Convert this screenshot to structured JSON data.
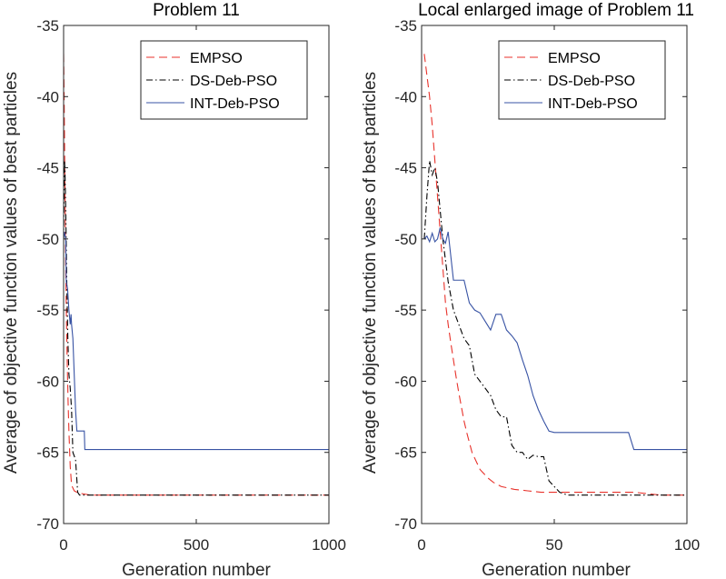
{
  "chart_data": [
    {
      "type": "line",
      "title": "Problem 11",
      "xlabel": "Generation number",
      "ylabel": "Average of objective function values of best particles",
      "xlim": [
        0,
        1000
      ],
      "ylim": [
        -70,
        -35
      ],
      "xticks": [
        0,
        500,
        1000
      ],
      "xtick_labels": [
        "0",
        "500",
        "1000"
      ],
      "yticks": [
        -35,
        -40,
        -45,
        -50,
        -55,
        -60,
        -65,
        -70
      ],
      "ytick_labels": [
        "-35",
        "-40",
        "-45",
        "-50",
        "-55",
        "-60",
        "-65",
        "-70"
      ],
      "legend_position": "top-right",
      "series": [
        {
          "name": "EMPSO",
          "color": "#e8322b",
          "dash": "dashed",
          "x": [
            0,
            2,
            5,
            8,
            11,
            14,
            17,
            20,
            25,
            30,
            40,
            50,
            70,
            100,
            200,
            500,
            1000
          ],
          "y": [
            -37,
            -40,
            -46,
            -52,
            -56,
            -59,
            -61.5,
            -63.5,
            -66,
            -67.3,
            -67.7,
            -67.8,
            -67.9,
            -68,
            -68,
            -68,
            -68
          ]
        },
        {
          "name": "DS-Deb-PSO",
          "color": "#000000",
          "dash": "dashdot",
          "x": [
            0,
            3,
            5,
            8,
            12,
            16,
            20,
            25,
            30,
            35,
            45,
            53,
            60,
            100,
            500,
            1000
          ],
          "y": [
            -50,
            -44.5,
            -45,
            -48,
            -53,
            -57,
            -59.5,
            -60.5,
            -62,
            -65,
            -65.5,
            -67.8,
            -68,
            -68,
            -68,
            -68
          ]
        },
        {
          "name": "INT-Deb-PSO",
          "color": "#3853a4",
          "dash": "solid",
          "x": [
            0,
            3,
            6,
            8,
            10,
            15,
            20,
            25,
            28,
            30,
            35,
            40,
            45,
            50,
            60,
            70,
            78,
            80,
            90,
            100,
            200,
            500,
            1000
          ],
          "y": [
            -50,
            -49.5,
            -49.8,
            -50,
            -53,
            -53.5,
            -55,
            -56,
            -55.3,
            -56,
            -57,
            -59.5,
            -62,
            -63.5,
            -63.5,
            -63.5,
            -63.5,
            -64.8,
            -64.8,
            -64.8,
            -64.8,
            -64.8,
            -64.8
          ]
        }
      ]
    },
    {
      "type": "line",
      "title": "Local enlarged image of Problem 11",
      "xlabel": "Generation number",
      "ylabel": "Average of objective function values of best particles",
      "xlim": [
        0,
        100
      ],
      "ylim": [
        -70,
        -35
      ],
      "xticks": [
        0,
        50,
        100
      ],
      "xtick_labels": [
        "0",
        "50",
        "100"
      ],
      "yticks": [
        -35,
        -40,
        -45,
        -50,
        -55,
        -60,
        -65,
        -70
      ],
      "ytick_labels": [
        "-35",
        "-40",
        "-45",
        "-50",
        "-55",
        "-60",
        "-65",
        "-70"
      ],
      "legend_position": "top-right",
      "series": [
        {
          "name": "EMPSO",
          "color": "#e8322b",
          "dash": "dashed",
          "x": [
            1,
            2,
            3,
            4,
            5,
            6,
            7,
            8,
            9,
            10,
            11,
            12,
            13,
            14,
            15,
            16,
            17,
            18,
            19,
            20,
            21,
            22,
            23,
            24,
            25,
            27,
            30,
            35,
            40,
            45,
            50,
            60,
            70,
            80,
            90,
            100
          ],
          "y": [
            -37,
            -38.5,
            -40,
            -42,
            -44.5,
            -47,
            -49.5,
            -52,
            -54.5,
            -56,
            -57.3,
            -58.5,
            -59.7,
            -60.8,
            -61.8,
            -62.8,
            -63.6,
            -64.3,
            -65,
            -65.4,
            -65.8,
            -66.2,
            -66.4,
            -66.6,
            -66.8,
            -67.1,
            -67.4,
            -67.6,
            -67.7,
            -67.8,
            -67.8,
            -67.8,
            -67.8,
            -67.8,
            -68,
            -68
          ]
        },
        {
          "name": "DS-Deb-PSO",
          "color": "#000000",
          "dash": "dashdot",
          "x": [
            1,
            2,
            3,
            4,
            5,
            6,
            7,
            8,
            9,
            10,
            11,
            12,
            14,
            16,
            18,
            20,
            22,
            24,
            26,
            28,
            30,
            32,
            34,
            36,
            38,
            40,
            42,
            44,
            46,
            48,
            50,
            52,
            55,
            60,
            70,
            80,
            90,
            100
          ],
          "y": [
            -50,
            -47,
            -44.5,
            -45.5,
            -45,
            -46,
            -48,
            -50,
            -51.5,
            -53,
            -54,
            -55,
            -56,
            -57,
            -57.5,
            -59.5,
            -60,
            -60.5,
            -61,
            -62,
            -62.5,
            -62.5,
            -64.5,
            -65,
            -65,
            -65.5,
            -65.2,
            -65.3,
            -65.3,
            -67,
            -67.4,
            -67.8,
            -68,
            -68,
            -68,
            -68,
            -68,
            -68
          ]
        },
        {
          "name": "INT-Deb-PSO",
          "color": "#3853a4",
          "dash": "solid",
          "x": [
            1,
            2,
            3,
            4,
            5,
            6,
            7,
            8,
            9,
            10,
            12,
            14,
            16,
            18,
            20,
            22,
            24,
            26,
            28,
            30,
            32,
            34,
            36,
            38,
            40,
            42,
            44,
            46,
            48,
            50,
            55,
            60,
            65,
            70,
            75,
            78,
            80,
            85,
            90,
            95,
            100
          ],
          "y": [
            -50,
            -49.8,
            -50.2,
            -49.6,
            -50.2,
            -50,
            -49.2,
            -50,
            -50.3,
            -49.5,
            -52.9,
            -52.9,
            -52.9,
            -54.5,
            -55,
            -55.2,
            -55.8,
            -56.4,
            -55.3,
            -55.3,
            -56.4,
            -56.8,
            -57.3,
            -58.5,
            -59.6,
            -61,
            -62,
            -62.8,
            -63.5,
            -63.6,
            -63.6,
            -63.6,
            -63.6,
            -63.6,
            -63.6,
            -63.6,
            -64.8,
            -64.8,
            -64.8,
            -64.8,
            -64.8
          ]
        }
      ]
    }
  ]
}
